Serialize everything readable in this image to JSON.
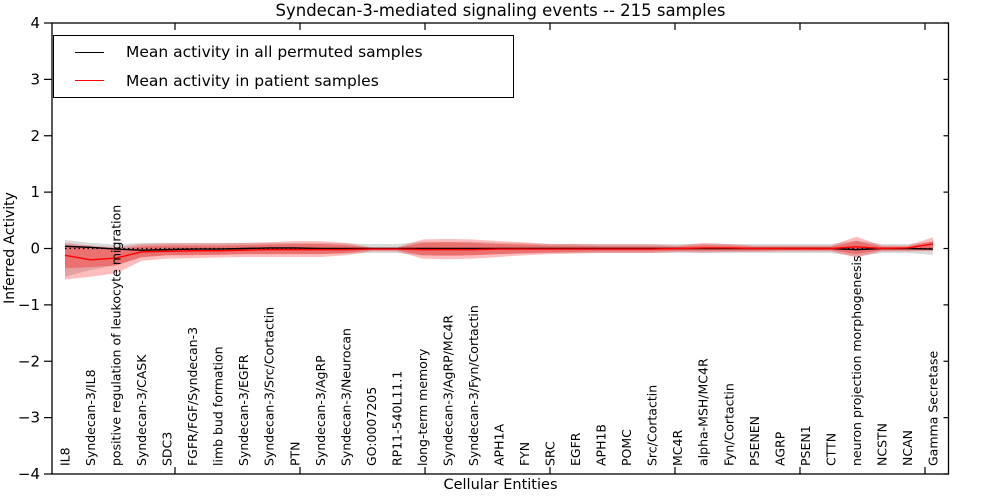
{
  "chart_data": {
    "type": "line",
    "title": "Syndecan-3-mediated signaling events -- 215 samples",
    "xlabel": "Cellular Entities",
    "ylabel": "Inferred Activity",
    "ylim": [
      -4,
      4
    ],
    "y_ticks": [
      -4,
      -3,
      -2,
      -1,
      0,
      1,
      2,
      3,
      4
    ],
    "grid": false,
    "legend_position": "upper-left",
    "zero_line_style": "dotted",
    "categories": [
      "IL8",
      "Syndecan-3/IL8",
      "positive regulation of leukocyte migration",
      "Syndecan-3/CASK",
      "SDC3",
      "FGFR/FGF/Syndecan-3",
      "limb bud formation",
      "Syndecan-3/EGFR",
      "Syndecan-3/Src/Cortactin",
      "PTN",
      "Syndecan-3/AgRP",
      "Syndecan-3/Neurocan",
      "GO:0007205",
      "RP11-540L11.1",
      "long-term memory",
      "Syndecan-3/AgRP/MC4R",
      "Syndecan-3/Fyn/Cortactin",
      "APH1A",
      "FYN",
      "SRC",
      "EGFR",
      "APH1B",
      "POMC",
      "Src/Cortactin",
      "MC4R",
      "alpha-MSH/MC4R",
      "Fyn/Cortactin",
      "PSENEN",
      "AGRP",
      "PSEN1",
      "CTTN",
      "neuron projection morphogenesis",
      "NCSTN",
      "NCAN",
      "Gamma Secretase"
    ],
    "series": [
      {
        "name": "Mean activity in all permuted samples",
        "color": "#000000",
        "values": [
          0.04,
          0.02,
          -0.01,
          -0.03,
          -0.02,
          -0.01,
          -0.01,
          0.0,
          0.01,
          0.01,
          0.0,
          0.0,
          0.0,
          0.0,
          0.0,
          0.0,
          0.0,
          0.0,
          0.0,
          0.0,
          0.0,
          0.0,
          0.0,
          0.0,
          0.0,
          0.0,
          0.0,
          0.0,
          0.0,
          0.0,
          0.0,
          -0.02,
          0.0,
          0.0,
          -0.01
        ]
      },
      {
        "name": "Mean activity in patient samples",
        "color": "#ff0000",
        "values": [
          -0.12,
          -0.2,
          -0.17,
          -0.06,
          -0.05,
          -0.04,
          -0.04,
          -0.03,
          -0.02,
          -0.02,
          -0.02,
          -0.02,
          -0.01,
          -0.01,
          -0.02,
          -0.02,
          -0.02,
          -0.01,
          -0.01,
          -0.01,
          -0.01,
          -0.01,
          -0.01,
          -0.01,
          0.0,
          0.01,
          0.01,
          0.0,
          0.0,
          0.0,
          0.0,
          0.03,
          0.0,
          0.01,
          0.08
        ]
      }
    ],
    "bands": [
      {
        "name": "permuted-range",
        "color": "rgba(80,80,80,0.22)",
        "upper": [
          0.15,
          0.1,
          0.07,
          0.1,
          0.1,
          0.1,
          0.1,
          0.1,
          0.1,
          0.1,
          0.1,
          0.09,
          0.08,
          0.08,
          0.12,
          0.12,
          0.12,
          0.1,
          0.09,
          0.08,
          0.08,
          0.08,
          0.08,
          0.08,
          0.08,
          0.08,
          0.08,
          0.08,
          0.08,
          0.08,
          0.08,
          0.14,
          0.08,
          0.08,
          0.12
        ],
        "lower": [
          -0.5,
          -0.38,
          -0.3,
          -0.16,
          -0.12,
          -0.11,
          -0.11,
          -0.1,
          -0.1,
          -0.1,
          -0.1,
          -0.09,
          -0.08,
          -0.08,
          -0.12,
          -0.12,
          -0.12,
          -0.1,
          -0.09,
          -0.08,
          -0.08,
          -0.08,
          -0.08,
          -0.08,
          -0.08,
          -0.08,
          -0.08,
          -0.08,
          -0.08,
          -0.08,
          -0.08,
          -0.14,
          -0.08,
          -0.08,
          -0.11
        ]
      },
      {
        "name": "patient-range-outer",
        "color": "rgba(255,0,0,0.26)",
        "upper": [
          0.1,
          0.05,
          0.02,
          0.08,
          0.09,
          0.09,
          0.09,
          0.1,
          0.11,
          0.13,
          0.13,
          0.1,
          0.02,
          0.02,
          0.16,
          0.17,
          0.16,
          0.13,
          0.11,
          0.08,
          0.08,
          0.07,
          0.07,
          0.07,
          0.05,
          0.1,
          0.08,
          0.05,
          0.05,
          0.05,
          0.05,
          0.21,
          0.05,
          0.05,
          0.2
        ],
        "lower": [
          -0.55,
          -0.5,
          -0.44,
          -0.22,
          -0.18,
          -0.17,
          -0.16,
          -0.15,
          -0.15,
          -0.15,
          -0.15,
          -0.12,
          -0.05,
          -0.05,
          -0.18,
          -0.19,
          -0.18,
          -0.15,
          -0.12,
          -0.1,
          -0.09,
          -0.08,
          -0.08,
          -0.08,
          -0.06,
          -0.07,
          -0.06,
          -0.06,
          -0.05,
          -0.05,
          -0.05,
          -0.16,
          -0.05,
          -0.05,
          -0.04
        ]
      },
      {
        "name": "patient-range-inner",
        "color": "rgba(255,0,0,0.3)",
        "upper": [
          0.04,
          0.0,
          -0.02,
          0.04,
          0.05,
          0.05,
          0.05,
          0.06,
          0.07,
          0.08,
          0.08,
          0.06,
          0.01,
          0.01,
          0.1,
          0.11,
          0.1,
          0.08,
          0.07,
          0.05,
          0.05,
          0.04,
          0.04,
          0.04,
          0.03,
          0.06,
          0.05,
          0.03,
          0.03,
          0.03,
          0.03,
          0.13,
          0.03,
          0.03,
          0.13
        ],
        "lower": [
          -0.35,
          -0.33,
          -0.3,
          -0.15,
          -0.12,
          -0.12,
          -0.11,
          -0.1,
          -0.1,
          -0.1,
          -0.1,
          -0.08,
          -0.03,
          -0.03,
          -0.12,
          -0.13,
          -0.12,
          -0.1,
          -0.08,
          -0.07,
          -0.06,
          -0.05,
          -0.05,
          -0.05,
          -0.04,
          -0.04,
          -0.04,
          -0.04,
          -0.03,
          -0.03,
          -0.03,
          -0.1,
          -0.03,
          -0.03,
          -0.03
        ]
      }
    ]
  }
}
